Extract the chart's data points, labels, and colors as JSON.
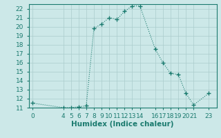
{
  "xlabel": "Humidex (Indice chaleur)",
  "x_values": [
    0,
    4,
    5,
    6,
    7,
    8,
    9,
    10,
    11,
    12,
    13,
    14,
    16,
    17,
    18,
    19,
    20,
    21,
    23
  ],
  "y_values": [
    11.5,
    11.0,
    11.0,
    11.1,
    11.2,
    19.8,
    20.3,
    21.0,
    20.8,
    21.7,
    22.3,
    22.3,
    17.5,
    16.0,
    14.8,
    14.7,
    12.6,
    11.3,
    12.6
  ],
  "line_color": "#1a7a6e",
  "marker": "+",
  "bg_color": "#cce8e8",
  "grid_color": "#aacccc",
  "xlim": [
    -0.5,
    24
  ],
  "ylim": [
    11,
    22.5
  ],
  "xticks": [
    0,
    4,
    5,
    6,
    7,
    8,
    9,
    10,
    11,
    12,
    13,
    14,
    16,
    17,
    18,
    19,
    20,
    21,
    23
  ],
  "yticks": [
    11,
    12,
    13,
    14,
    15,
    16,
    17,
    18,
    19,
    20,
    21,
    22
  ],
  "fontsize": 6.5,
  "label_fontsize": 7.5
}
